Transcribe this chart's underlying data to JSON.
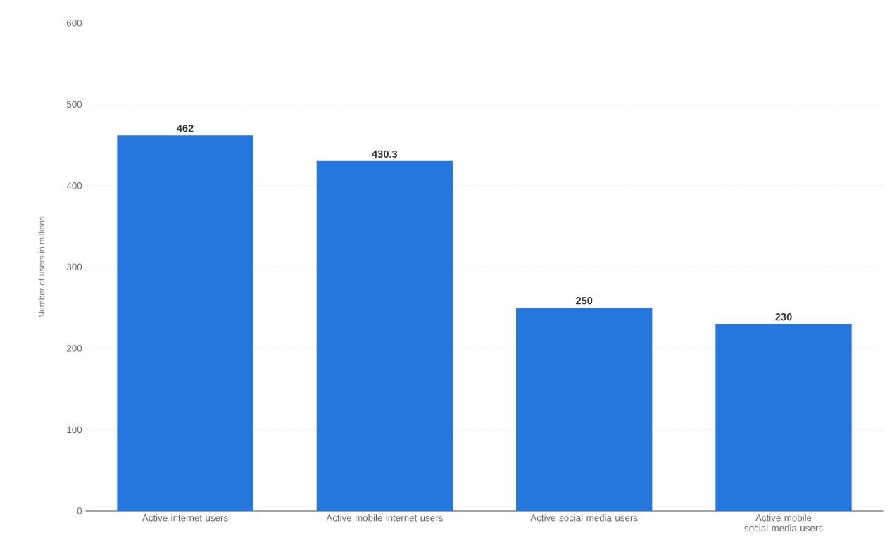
{
  "chart_data": {
    "type": "bar",
    "ylabel": "Number of users in millions",
    "categories": [
      "Active internet users",
      "Active mobile internet users",
      "Active social media users",
      "Active mobile social media users"
    ],
    "values": [
      462,
      430.3,
      250,
      230
    ],
    "color": "#2677dd",
    "ylim": [
      0,
      600
    ],
    "yticks": [
      0,
      100,
      200,
      300,
      400,
      500,
      600
    ],
    "grid": "y",
    "data_labels": true
  }
}
